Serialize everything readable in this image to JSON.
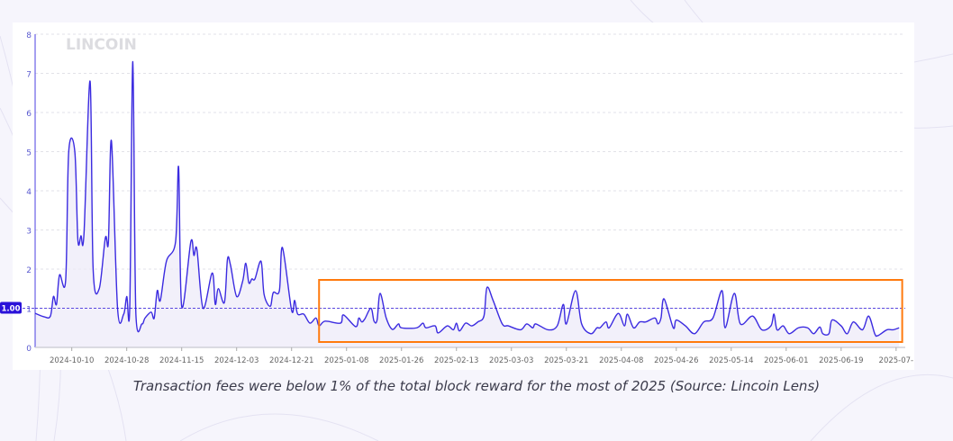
{
  "caption": "Transaction fees were below 1% of the total block reward for the most of 2025 (Source: Lincoin Lens)",
  "watermark": "LINCOIN",
  "colors": {
    "line": "#3b2be0",
    "fill": "#eceaf8",
    "highlight_box": "#ff7a0e",
    "reference_line": "#2a12d9",
    "grid": "#e2e2e8",
    "tick_label": "#5a5ad0"
  },
  "chart_data": {
    "type": "area",
    "title": "",
    "xlabel": "",
    "ylabel": "",
    "ylim": [
      0,
      8
    ],
    "xlim": [
      "2024-09-28",
      "2025-07-10"
    ],
    "grid": true,
    "y_ticks": [
      "0",
      "1",
      "2",
      "3",
      "4",
      "5",
      "6",
      "7",
      "8"
    ],
    "x_ticks": [
      "2024-10-10",
      "2024-10-28",
      "2024-11-15",
      "2024-12-03",
      "2024-12-21",
      "2025-01-08",
      "2025-01-26",
      "2025-02-13",
      "2025-03-03",
      "2025-03-21",
      "2025-04-08",
      "2025-04-26",
      "2025-05-14",
      "2025-06-01",
      "2025-06-19",
      "2025-07-"
    ],
    "reference_line": {
      "value": 1.0,
      "label": "1.00"
    },
    "highlight_range": {
      "from": "2024-12-30",
      "to": "2025-07-09"
    },
    "points": [
      [
        "2024-09-28",
        0.87
      ],
      [
        "2024-10-01",
        0.78
      ],
      [
        "2024-10-03",
        0.8
      ],
      [
        "2024-10-04",
        1.3
      ],
      [
        "2024-10-05",
        1.1
      ],
      [
        "2024-10-06",
        1.85
      ],
      [
        "2024-10-08",
        1.72
      ],
      [
        "2024-10-09",
        5.0
      ],
      [
        "2024-10-11",
        5.0
      ],
      [
        "2024-10-12",
        2.75
      ],
      [
        "2024-10-13",
        2.85
      ],
      [
        "2024-10-14",
        2.9
      ],
      [
        "2024-10-16",
        6.8
      ],
      [
        "2024-10-17",
        2.0
      ],
      [
        "2024-10-19",
        1.5
      ],
      [
        "2024-10-21",
        2.8
      ],
      [
        "2024-10-22",
        2.7
      ],
      [
        "2024-10-23",
        5.27
      ],
      [
        "2024-10-25",
        1.0
      ],
      [
        "2024-10-27",
        0.85
      ],
      [
        "2024-10-28",
        1.3
      ],
      [
        "2024-10-29",
        1.05
      ],
      [
        "2024-10-30",
        7.3
      ],
      [
        "2024-10-31",
        0.85
      ],
      [
        "2024-11-02",
        0.6
      ],
      [
        "2024-11-03",
        0.75
      ],
      [
        "2024-11-05",
        0.9
      ],
      [
        "2024-11-06",
        0.75
      ],
      [
        "2024-11-07",
        1.45
      ],
      [
        "2024-11-08",
        1.2
      ],
      [
        "2024-11-10",
        2.2
      ],
      [
        "2024-11-13",
        2.7
      ],
      [
        "2024-11-14",
        4.6
      ],
      [
        "2024-11-15",
        1.05
      ],
      [
        "2024-11-18",
        2.7
      ],
      [
        "2024-11-19",
        2.35
      ],
      [
        "2024-11-20",
        2.5
      ],
      [
        "2024-11-22",
        1.0
      ],
      [
        "2024-11-25",
        1.9
      ],
      [
        "2024-11-26",
        1.1
      ],
      [
        "2024-11-27",
        1.5
      ],
      [
        "2024-11-29",
        1.15
      ],
      [
        "2024-11-30",
        2.25
      ],
      [
        "2024-12-01",
        2.1
      ],
      [
        "2024-12-03",
        1.3
      ],
      [
        "2024-12-05",
        1.7
      ],
      [
        "2024-12-06",
        2.15
      ],
      [
        "2024-12-07",
        1.65
      ],
      [
        "2024-12-08",
        1.75
      ],
      [
        "2024-12-09",
        1.75
      ],
      [
        "2024-12-11",
        2.2
      ],
      [
        "2024-12-12",
        1.35
      ],
      [
        "2024-12-14",
        1.05
      ],
      [
        "2024-12-15",
        1.4
      ],
      [
        "2024-12-17",
        1.45
      ],
      [
        "2024-12-18",
        2.55
      ],
      [
        "2024-12-21",
        0.95
      ],
      [
        "2024-12-22",
        1.2
      ],
      [
        "2024-12-23",
        0.85
      ],
      [
        "2024-12-25",
        0.85
      ],
      [
        "2024-12-27",
        0.62
      ],
      [
        "2024-12-29",
        0.75
      ],
      [
        "2024-12-30",
        0.55
      ],
      [
        "2025-01-01",
        0.67
      ],
      [
        "2025-01-06",
        0.62
      ],
      [
        "2025-01-07",
        0.83
      ],
      [
        "2025-01-11",
        0.53
      ],
      [
        "2025-01-12",
        0.75
      ],
      [
        "2025-01-13",
        0.65
      ],
      [
        "2025-01-14",
        0.73
      ],
      [
        "2025-01-16",
        1.0
      ],
      [
        "2025-01-17",
        0.67
      ],
      [
        "2025-01-18",
        0.7
      ],
      [
        "2025-01-19",
        1.38
      ],
      [
        "2025-01-21",
        0.75
      ],
      [
        "2025-01-23",
        0.46
      ],
      [
        "2025-01-25",
        0.6
      ],
      [
        "2025-01-26",
        0.5
      ],
      [
        "2025-01-31",
        0.5
      ],
      [
        "2025-02-02",
        0.62
      ],
      [
        "2025-02-03",
        0.5
      ],
      [
        "2025-02-06",
        0.55
      ],
      [
        "2025-02-07",
        0.37
      ],
      [
        "2025-02-10",
        0.55
      ],
      [
        "2025-02-12",
        0.45
      ],
      [
        "2025-02-13",
        0.62
      ],
      [
        "2025-02-14",
        0.42
      ],
      [
        "2025-02-16",
        0.62
      ],
      [
        "2025-02-18",
        0.55
      ],
      [
        "2025-02-20",
        0.65
      ],
      [
        "2025-02-22",
        0.8
      ],
      [
        "2025-02-23",
        1.53
      ],
      [
        "2025-02-25",
        1.2
      ],
      [
        "2025-02-28",
        0.6
      ],
      [
        "2025-03-02",
        0.55
      ],
      [
        "2025-03-06",
        0.45
      ],
      [
        "2025-03-08",
        0.6
      ],
      [
        "2025-03-10",
        0.5
      ],
      [
        "2025-03-11",
        0.6
      ],
      [
        "2025-03-15",
        0.45
      ],
      [
        "2025-03-18",
        0.55
      ],
      [
        "2025-03-20",
        1.1
      ],
      [
        "2025-03-21",
        0.6
      ],
      [
        "2025-03-24",
        1.45
      ],
      [
        "2025-03-26",
        0.6
      ],
      [
        "2025-03-29",
        0.35
      ],
      [
        "2025-03-31",
        0.5
      ],
      [
        "2025-04-01",
        0.5
      ],
      [
        "2025-04-03",
        0.65
      ],
      [
        "2025-04-04",
        0.5
      ],
      [
        "2025-04-07",
        0.87
      ],
      [
        "2025-04-09",
        0.55
      ],
      [
        "2025-04-10",
        0.85
      ],
      [
        "2025-04-12",
        0.5
      ],
      [
        "2025-04-14",
        0.65
      ],
      [
        "2025-04-16",
        0.65
      ],
      [
        "2025-04-19",
        0.75
      ],
      [
        "2025-04-20",
        0.6
      ],
      [
        "2025-04-21",
        0.75
      ],
      [
        "2025-04-22",
        1.24
      ],
      [
        "2025-04-25",
        0.5
      ],
      [
        "2025-04-26",
        0.7
      ],
      [
        "2025-04-29",
        0.55
      ],
      [
        "2025-05-02",
        0.35
      ],
      [
        "2025-05-05",
        0.65
      ],
      [
        "2025-05-08",
        0.75
      ],
      [
        "2025-05-11",
        1.45
      ],
      [
        "2025-05-12",
        0.5
      ],
      [
        "2025-05-15",
        1.38
      ],
      [
        "2025-05-17",
        0.6
      ],
      [
        "2025-05-21",
        0.8
      ],
      [
        "2025-05-24",
        0.45
      ],
      [
        "2025-05-27",
        0.55
      ],
      [
        "2025-05-28",
        0.85
      ],
      [
        "2025-05-29",
        0.45
      ],
      [
        "2025-05-31",
        0.55
      ],
      [
        "2025-06-02",
        0.35
      ],
      [
        "2025-06-05",
        0.5
      ],
      [
        "2025-06-08",
        0.5
      ],
      [
        "2025-06-10",
        0.35
      ],
      [
        "2025-06-12",
        0.52
      ],
      [
        "2025-06-13",
        0.35
      ],
      [
        "2025-06-15",
        0.35
      ],
      [
        "2025-06-16",
        0.7
      ],
      [
        "2025-06-19",
        0.55
      ],
      [
        "2025-06-21",
        0.35
      ],
      [
        "2025-06-23",
        0.65
      ],
      [
        "2025-06-26",
        0.45
      ],
      [
        "2025-06-28",
        0.8
      ],
      [
        "2025-06-30",
        0.35
      ],
      [
        "2025-07-01",
        0.3
      ],
      [
        "2025-07-04",
        0.45
      ],
      [
        "2025-07-06",
        0.45
      ],
      [
        "2025-07-08",
        0.5
      ]
    ]
  }
}
